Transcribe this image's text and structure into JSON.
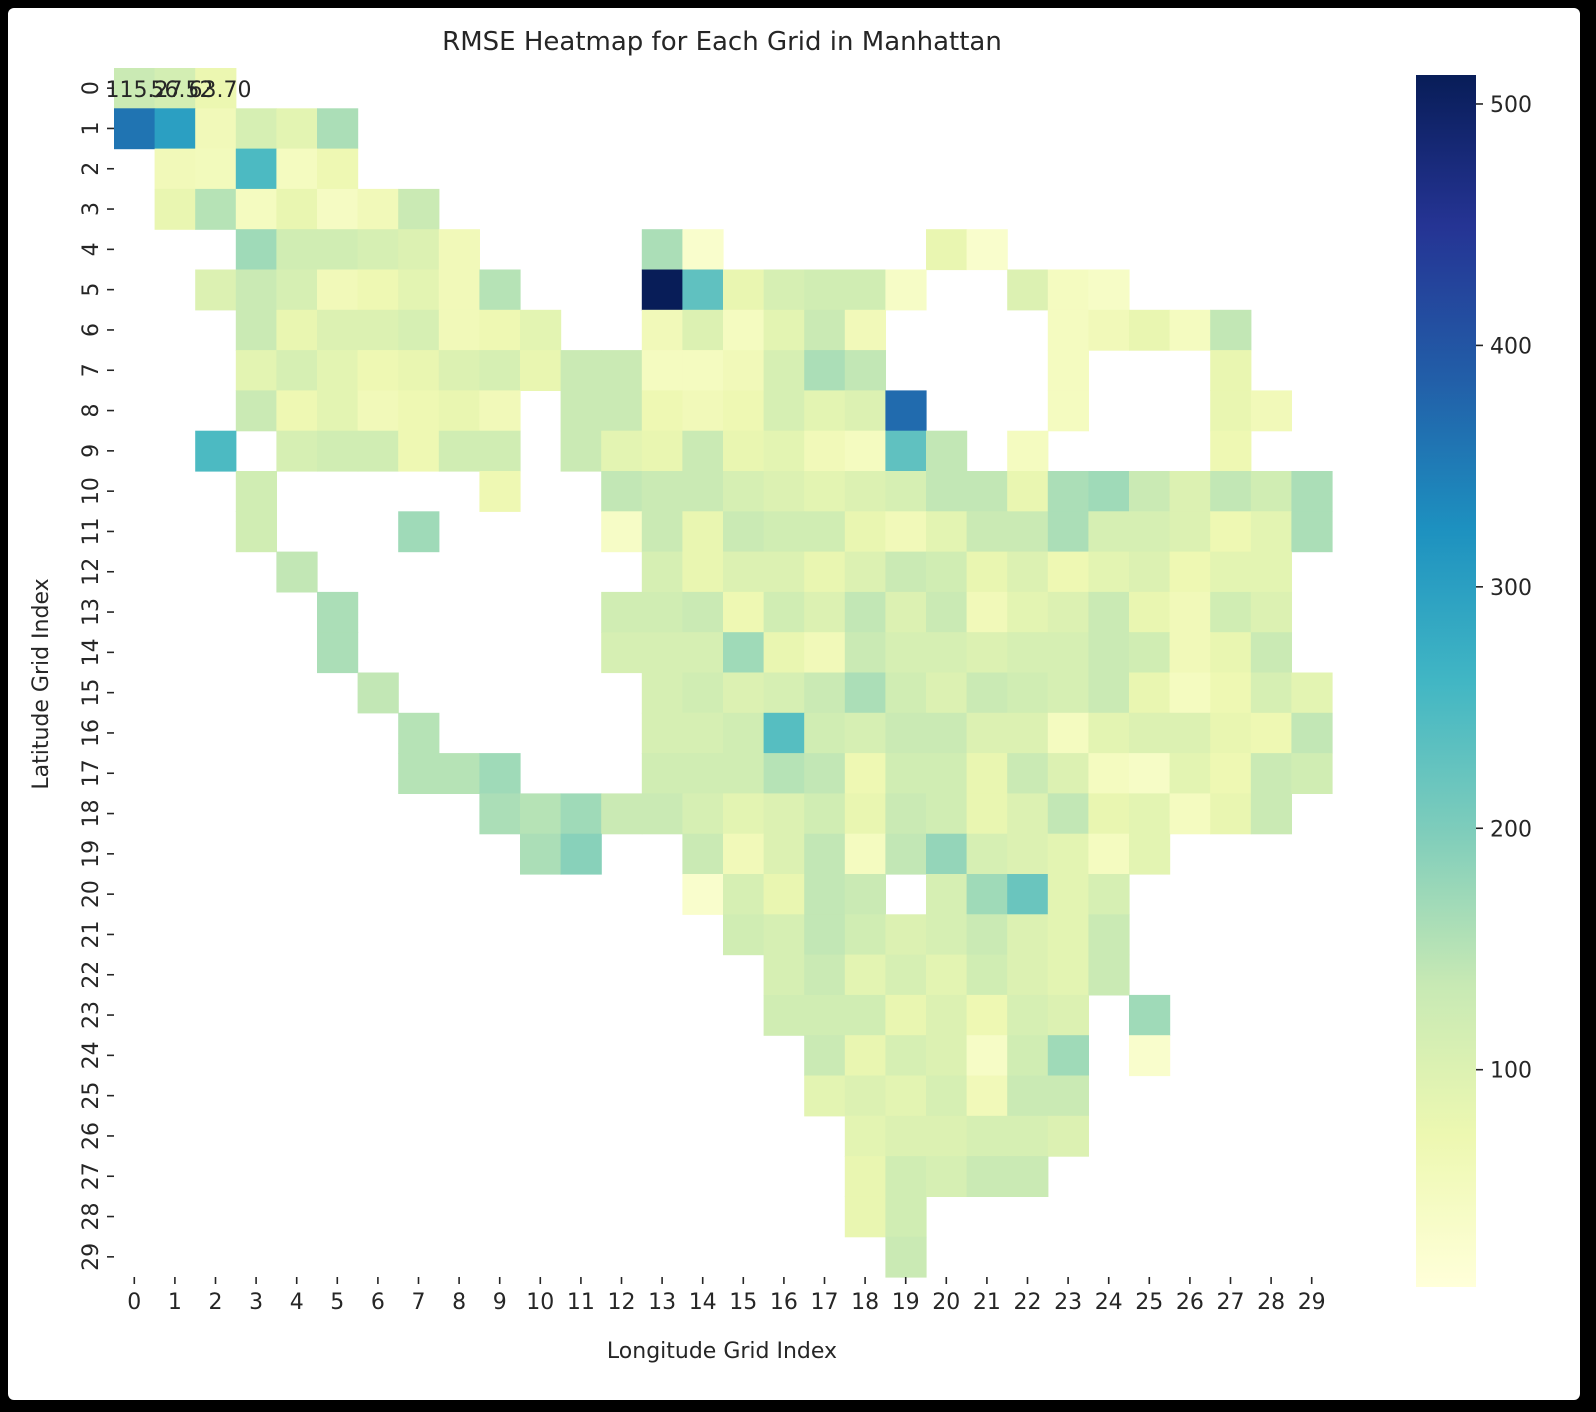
{
  "chart_data": {
    "type": "heatmap",
    "title": "RMSE Heatmap for Each Grid in Manhattan",
    "xlabel": "Longitude Grid Index",
    "ylabel": "Latitude Grid Index",
    "x_ticks": [
      "0",
      "1",
      "2",
      "3",
      "4",
      "5",
      "6",
      "7",
      "8",
      "9",
      "10",
      "11",
      "12",
      "13",
      "14",
      "15",
      "16",
      "17",
      "18",
      "19",
      "20",
      "21",
      "22",
      "23",
      "24",
      "25",
      "26",
      "27",
      "28",
      "29"
    ],
    "y_ticks": [
      "0",
      "1",
      "2",
      "3",
      "4",
      "5",
      "6",
      "7",
      "8",
      "9",
      "10",
      "11",
      "12",
      "13",
      "14",
      "15",
      "16",
      "17",
      "18",
      "19",
      "20",
      "21",
      "22",
      "23",
      "24",
      "25",
      "26",
      "27",
      "28",
      "29"
    ],
    "colorbar": {
      "colormap": "YlGnBu",
      "range": [
        10,
        512
      ],
      "ticks": [
        100,
        200,
        300,
        400,
        500
      ],
      "tick_labels": [
        "100",
        "200",
        "300",
        "400",
        "500"
      ]
    },
    "annotations": [
      {
        "row": 0,
        "text": "115.27"
      },
      {
        "row": 0,
        "text": "56.52"
      },
      {
        "row": 0,
        "text": "63.70"
      }
    ],
    "values": [
      [
        130,
        115,
        75,
        null,
        null,
        null,
        null,
        null,
        null,
        null,
        null,
        null,
        null,
        null,
        null,
        null,
        null,
        null,
        null,
        null,
        null,
        null,
        null,
        null,
        null,
        null,
        null,
        null,
        null,
        null
      ],
      [
        360,
        300,
        60,
        110,
        90,
        160,
        null,
        null,
        null,
        null,
        null,
        null,
        null,
        null,
        null,
        null,
        null,
        null,
        null,
        null,
        null,
        null,
        null,
        null,
        null,
        null,
        null,
        null,
        null,
        null
      ],
      [
        null,
        60,
        55,
        250,
        50,
        70,
        null,
        null,
        null,
        null,
        null,
        null,
        null,
        null,
        null,
        null,
        null,
        null,
        null,
        null,
        null,
        null,
        null,
        null,
        null,
        null,
        null,
        null,
        null,
        null
      ],
      [
        null,
        80,
        150,
        50,
        80,
        45,
        60,
        130,
        null,
        null,
        null,
        null,
        null,
        null,
        null,
        null,
        null,
        null,
        null,
        null,
        null,
        null,
        null,
        null,
        null,
        null,
        null,
        null,
        null,
        null
      ],
      [
        null,
        null,
        null,
        170,
        120,
        120,
        110,
        100,
        60,
        null,
        null,
        null,
        null,
        160,
        30,
        null,
        null,
        null,
        null,
        null,
        80,
        30,
        null,
        null,
        null,
        null,
        null,
        null,
        null,
        null
      ],
      [
        null,
        null,
        100,
        130,
        110,
        60,
        70,
        90,
        60,
        150,
        null,
        null,
        null,
        512,
        230,
        80,
        110,
        120,
        120,
        40,
        null,
        null,
        100,
        50,
        40,
        null,
        null,
        null,
        null,
        null
      ],
      [
        null,
        null,
        null,
        130,
        80,
        100,
        100,
        110,
        60,
        70,
        90,
        null,
        null,
        60,
        100,
        50,
        90,
        130,
        60,
        null,
        null,
        null,
        null,
        50,
        60,
        80,
        50,
        140,
        null,
        null
      ],
      [
        null,
        null,
        null,
        90,
        110,
        90,
        70,
        80,
        100,
        110,
        80,
        130,
        130,
        50,
        50,
        60,
        110,
        160,
        140,
        null,
        null,
        null,
        null,
        50,
        null,
        null,
        null,
        80,
        null,
        null
      ],
      [
        null,
        null,
        null,
        130,
        70,
        90,
        60,
        70,
        80,
        60,
        null,
        130,
        130,
        70,
        60,
        70,
        110,
        90,
        100,
        370,
        null,
        null,
        null,
        50,
        null,
        null,
        null,
        80,
        60,
        null
      ],
      [
        null,
        null,
        250,
        null,
        110,
        120,
        120,
        70,
        120,
        120,
        null,
        130,
        90,
        80,
        130,
        80,
        90,
        60,
        50,
        230,
        140,
        null,
        50,
        null,
        null,
        null,
        null,
        70,
        null,
        null
      ],
      [
        null,
        null,
        null,
        120,
        null,
        null,
        null,
        null,
        null,
        70,
        null,
        null,
        140,
        130,
        130,
        110,
        100,
        90,
        100,
        110,
        140,
        140,
        80,
        160,
        170,
        130,
        100,
        140,
        120,
        160
      ],
      [
        null,
        null,
        null,
        120,
        null,
        null,
        null,
        170,
        null,
        null,
        null,
        null,
        40,
        130,
        80,
        130,
        120,
        120,
        80,
        60,
        90,
        130,
        130,
        160,
        110,
        110,
        100,
        70,
        90,
        160
      ],
      [
        null,
        null,
        null,
        null,
        140,
        null,
        null,
        null,
        null,
        null,
        null,
        null,
        null,
        110,
        80,
        100,
        100,
        80,
        100,
        130,
        120,
        80,
        100,
        70,
        90,
        100,
        70,
        90,
        90,
        null
      ],
      [
        null,
        null,
        null,
        null,
        null,
        160,
        null,
        null,
        null,
        null,
        null,
        null,
        120,
        120,
        130,
        70,
        120,
        100,
        140,
        100,
        130,
        60,
        90,
        100,
        130,
        80,
        60,
        120,
        100,
        null
      ],
      [
        null,
        null,
        null,
        null,
        null,
        160,
        null,
        null,
        null,
        null,
        null,
        null,
        110,
        110,
        110,
        170,
        80,
        60,
        130,
        110,
        110,
        100,
        110,
        110,
        130,
        120,
        60,
        80,
        130,
        null
      ],
      [
        null,
        null,
        null,
        null,
        null,
        null,
        140,
        null,
        null,
        null,
        null,
        null,
        null,
        110,
        120,
        100,
        110,
        130,
        160,
        120,
        100,
        130,
        120,
        110,
        130,
        80,
        50,
        70,
        110,
        90
      ],
      [
        null,
        null,
        null,
        null,
        null,
        null,
        null,
        150,
        null,
        null,
        null,
        null,
        null,
        110,
        110,
        120,
        240,
        120,
        110,
        130,
        130,
        100,
        100,
        50,
        90,
        100,
        100,
        80,
        70,
        140
      ],
      [
        null,
        null,
        null,
        null,
        null,
        null,
        null,
        150,
        150,
        170,
        null,
        null,
        null,
        120,
        120,
        120,
        150,
        140,
        70,
        120,
        120,
        80,
        130,
        100,
        50,
        40,
        90,
        70,
        130,
        120
      ],
      [
        null,
        null,
        null,
        null,
        null,
        null,
        null,
        null,
        null,
        160,
        150,
        170,
        130,
        130,
        110,
        90,
        100,
        120,
        80,
        130,
        120,
        80,
        100,
        140,
        80,
        90,
        50,
        80,
        130,
        null
      ],
      [
        null,
        null,
        null,
        null,
        null,
        null,
        null,
        null,
        null,
        null,
        160,
        190,
        null,
        null,
        130,
        60,
        100,
        140,
        50,
        140,
        180,
        110,
        100,
        90,
        50,
        90,
        null,
        null,
        null,
        null
      ],
      [
        null,
        null,
        null,
        null,
        null,
        null,
        null,
        null,
        null,
        null,
        null,
        null,
        null,
        null,
        30,
        110,
        80,
        140,
        130,
        null,
        110,
        170,
        220,
        90,
        110,
        null,
        null,
        null,
        null,
        null
      ],
      [
        null,
        null,
        null,
        null,
        null,
        null,
        null,
        null,
        null,
        null,
        null,
        null,
        null,
        null,
        null,
        120,
        110,
        140,
        120,
        100,
        110,
        130,
        100,
        90,
        130,
        null,
        null,
        null,
        null,
        null
      ],
      [
        null,
        null,
        null,
        null,
        null,
        null,
        null,
        null,
        null,
        null,
        null,
        null,
        null,
        null,
        null,
        null,
        110,
        130,
        90,
        110,
        90,
        120,
        100,
        90,
        130,
        null,
        null,
        null,
        null,
        null
      ],
      [
        null,
        null,
        null,
        null,
        null,
        null,
        null,
        null,
        null,
        null,
        null,
        null,
        null,
        null,
        null,
        null,
        120,
        120,
        120,
        80,
        100,
        70,
        110,
        100,
        null,
        170,
        null,
        null,
        null,
        null
      ],
      [
        null,
        null,
        null,
        null,
        null,
        null,
        null,
        null,
        null,
        null,
        null,
        null,
        null,
        null,
        null,
        null,
        null,
        130,
        80,
        110,
        100,
        40,
        120,
        170,
        null,
        30,
        null,
        null,
        null,
        null
      ],
      [
        null,
        null,
        null,
        null,
        null,
        null,
        null,
        null,
        null,
        null,
        null,
        null,
        null,
        null,
        null,
        null,
        null,
        90,
        100,
        90,
        110,
        60,
        130,
        130,
        null,
        null,
        null,
        null,
        null,
        null
      ],
      [
        null,
        null,
        null,
        null,
        null,
        null,
        null,
        null,
        null,
        null,
        null,
        null,
        null,
        null,
        null,
        null,
        null,
        null,
        90,
        100,
        100,
        110,
        110,
        100,
        null,
        null,
        null,
        null,
        null,
        null
      ],
      [
        null,
        null,
        null,
        null,
        null,
        null,
        null,
        null,
        null,
        null,
        null,
        null,
        null,
        null,
        null,
        null,
        null,
        null,
        80,
        120,
        110,
        130,
        130,
        null,
        null,
        null,
        null,
        null,
        null,
        null
      ],
      [
        null,
        null,
        null,
        null,
        null,
        null,
        null,
        null,
        null,
        null,
        null,
        null,
        null,
        null,
        null,
        null,
        null,
        null,
        80,
        120,
        null,
        null,
        null,
        null,
        null,
        null,
        null,
        null,
        null,
        null
      ],
      [
        null,
        null,
        null,
        null,
        null,
        null,
        null,
        null,
        null,
        null,
        null,
        null,
        null,
        null,
        null,
        null,
        null,
        null,
        null,
        130,
        null,
        null,
        null,
        null,
        null,
        null,
        null,
        null,
        null,
        null
      ]
    ]
  }
}
